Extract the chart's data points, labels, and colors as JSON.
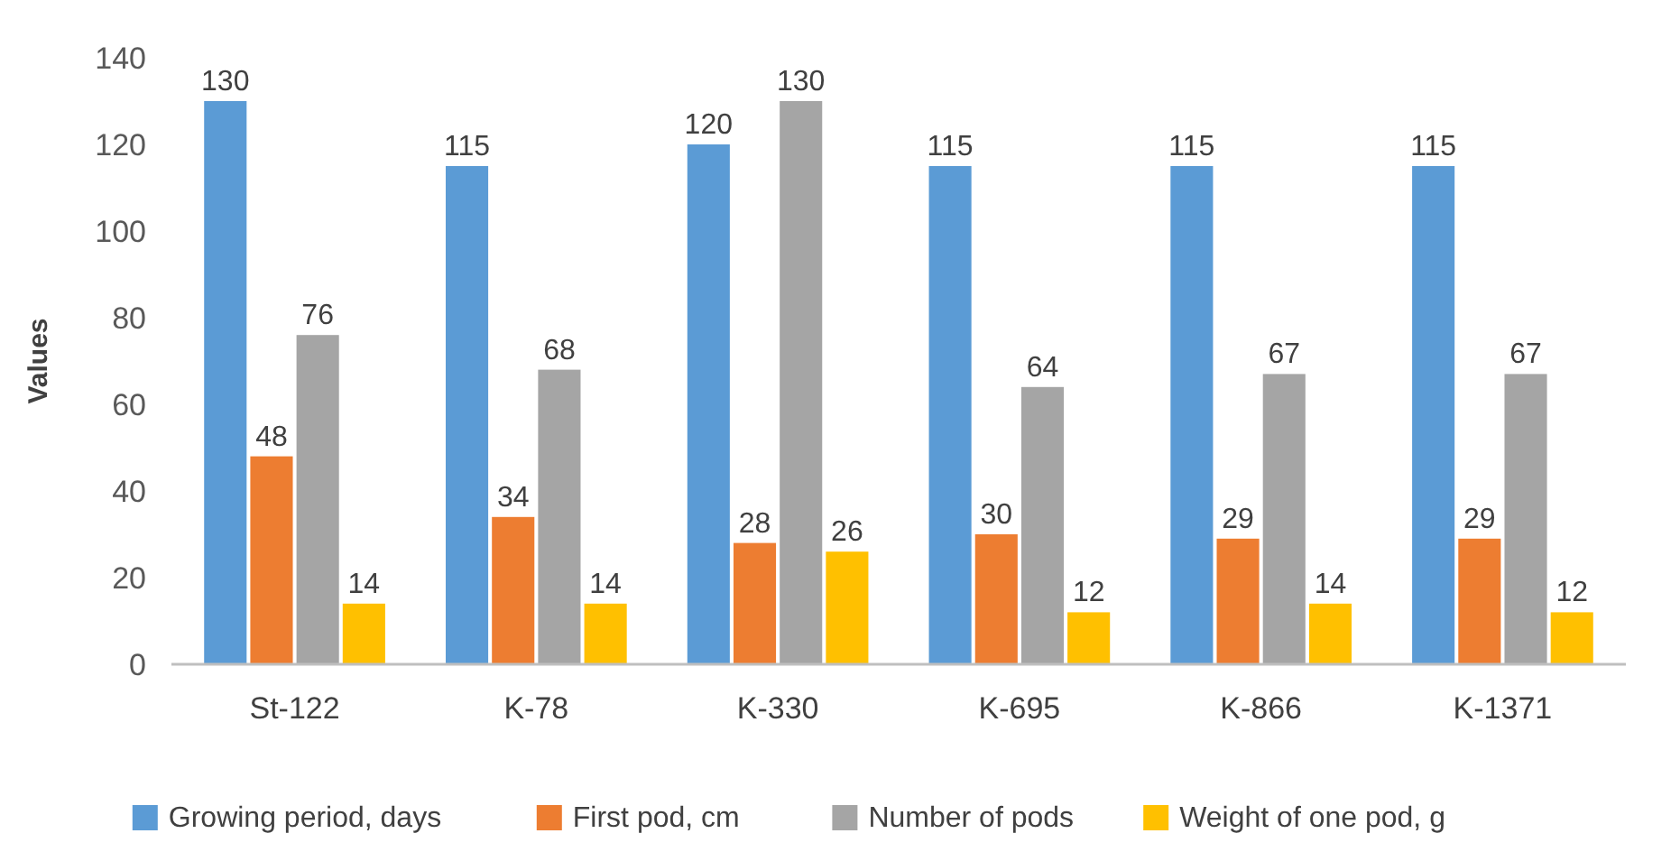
{
  "chart_data": {
    "type": "bar",
    "ylabel": "Values",
    "categories": [
      "St-122",
      "K-78",
      "K-330",
      "K-695",
      "K-866",
      "K-1371"
    ],
    "series": [
      {
        "name": "Growing period, days",
        "color": "#5b9bd5",
        "values": [
          130,
          115,
          120,
          115,
          115,
          115
        ]
      },
      {
        "name": "First pod, cm",
        "color": "#ed7d31",
        "values": [
          48,
          34,
          28,
          30,
          29,
          29
        ]
      },
      {
        "name": "Number of pods",
        "color": "#a5a5a5",
        "values": [
          76,
          68,
          130,
          64,
          67,
          67
        ]
      },
      {
        "name": "Weight of one pod, g",
        "color": "#ffc000",
        "values": [
          14,
          14,
          26,
          12,
          14,
          12
        ]
      }
    ],
    "ylim": [
      0,
      140
    ],
    "yticks": [
      0,
      20,
      40,
      60,
      80,
      100,
      120,
      140
    ],
    "data_labels": true,
    "legend": "bottom"
  }
}
